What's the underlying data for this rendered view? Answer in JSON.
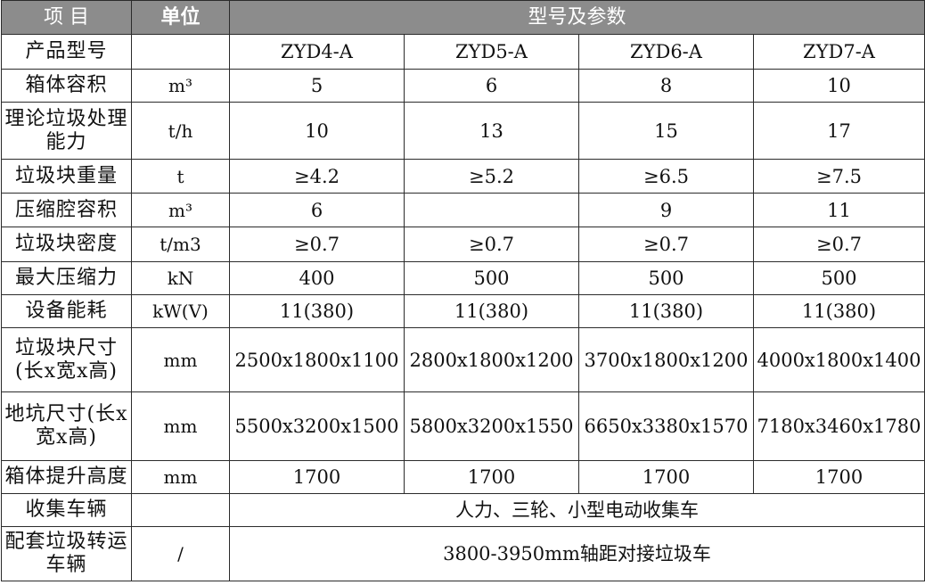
{
  "header": {
    "item": "项 目",
    "unit": "单位",
    "params": "型号及参数"
  },
  "rows": [
    {
      "label": "产品型号",
      "unit": "",
      "values": [
        "ZYD4-A",
        "ZYD5-A",
        "ZYD6-A",
        "ZYD7-A"
      ]
    },
    {
      "label": "箱体容积",
      "unit": "m³",
      "values": [
        "5",
        "6",
        "8",
        "10"
      ]
    },
    {
      "label": "理论垃圾处理能力",
      "unit": "t/h",
      "values": [
        "10",
        "13",
        "15",
        "17"
      ]
    },
    {
      "label": "垃圾块重量",
      "unit": "t",
      "values": [
        "≥4.2",
        "≥5.2",
        "≥6.5",
        "≥7.5"
      ]
    },
    {
      "label": "压缩腔容积",
      "unit": "m³",
      "values": [
        "6",
        "",
        "9",
        "11"
      ]
    },
    {
      "label": "垃圾块密度",
      "unit": "t/m3",
      "values": [
        "≥0.7",
        "≥0.7",
        "≥0.7",
        "≥0.7"
      ]
    },
    {
      "label": "最大压缩力",
      "unit": "kN",
      "values": [
        "400",
        "500",
        "500",
        "500"
      ]
    },
    {
      "label": "设备能耗",
      "unit": "kW(V)",
      "values": [
        "11(380)",
        "11(380)",
        "11(380)",
        "11(380)"
      ]
    },
    {
      "label": "垃圾块尺寸(长x宽x高)",
      "unit": "mm",
      "values": [
        "2500x1800x1100",
        "2800x1800x1200",
        "3700x1800x1200",
        "4000x1800x1400"
      ]
    },
    {
      "label": "地坑尺寸(长x宽x高)",
      "unit": "mm",
      "values": [
        "5500x3200x1500",
        "5800x3200x1550",
        "6650x3380x1570",
        "7180x3460x1780"
      ]
    },
    {
      "label": "箱体提升高度",
      "unit": "mm",
      "values": [
        "1700",
        "1700",
        "1700",
        "1700"
      ]
    },
    {
      "label": "收集车辆",
      "unit": "",
      "merged": "人力、三轮、小型电动收集车"
    },
    {
      "label": "配套垃圾转运车辆",
      "unit": "/",
      "merged": "3800-3950mm轴距对接垃圾车"
    }
  ]
}
